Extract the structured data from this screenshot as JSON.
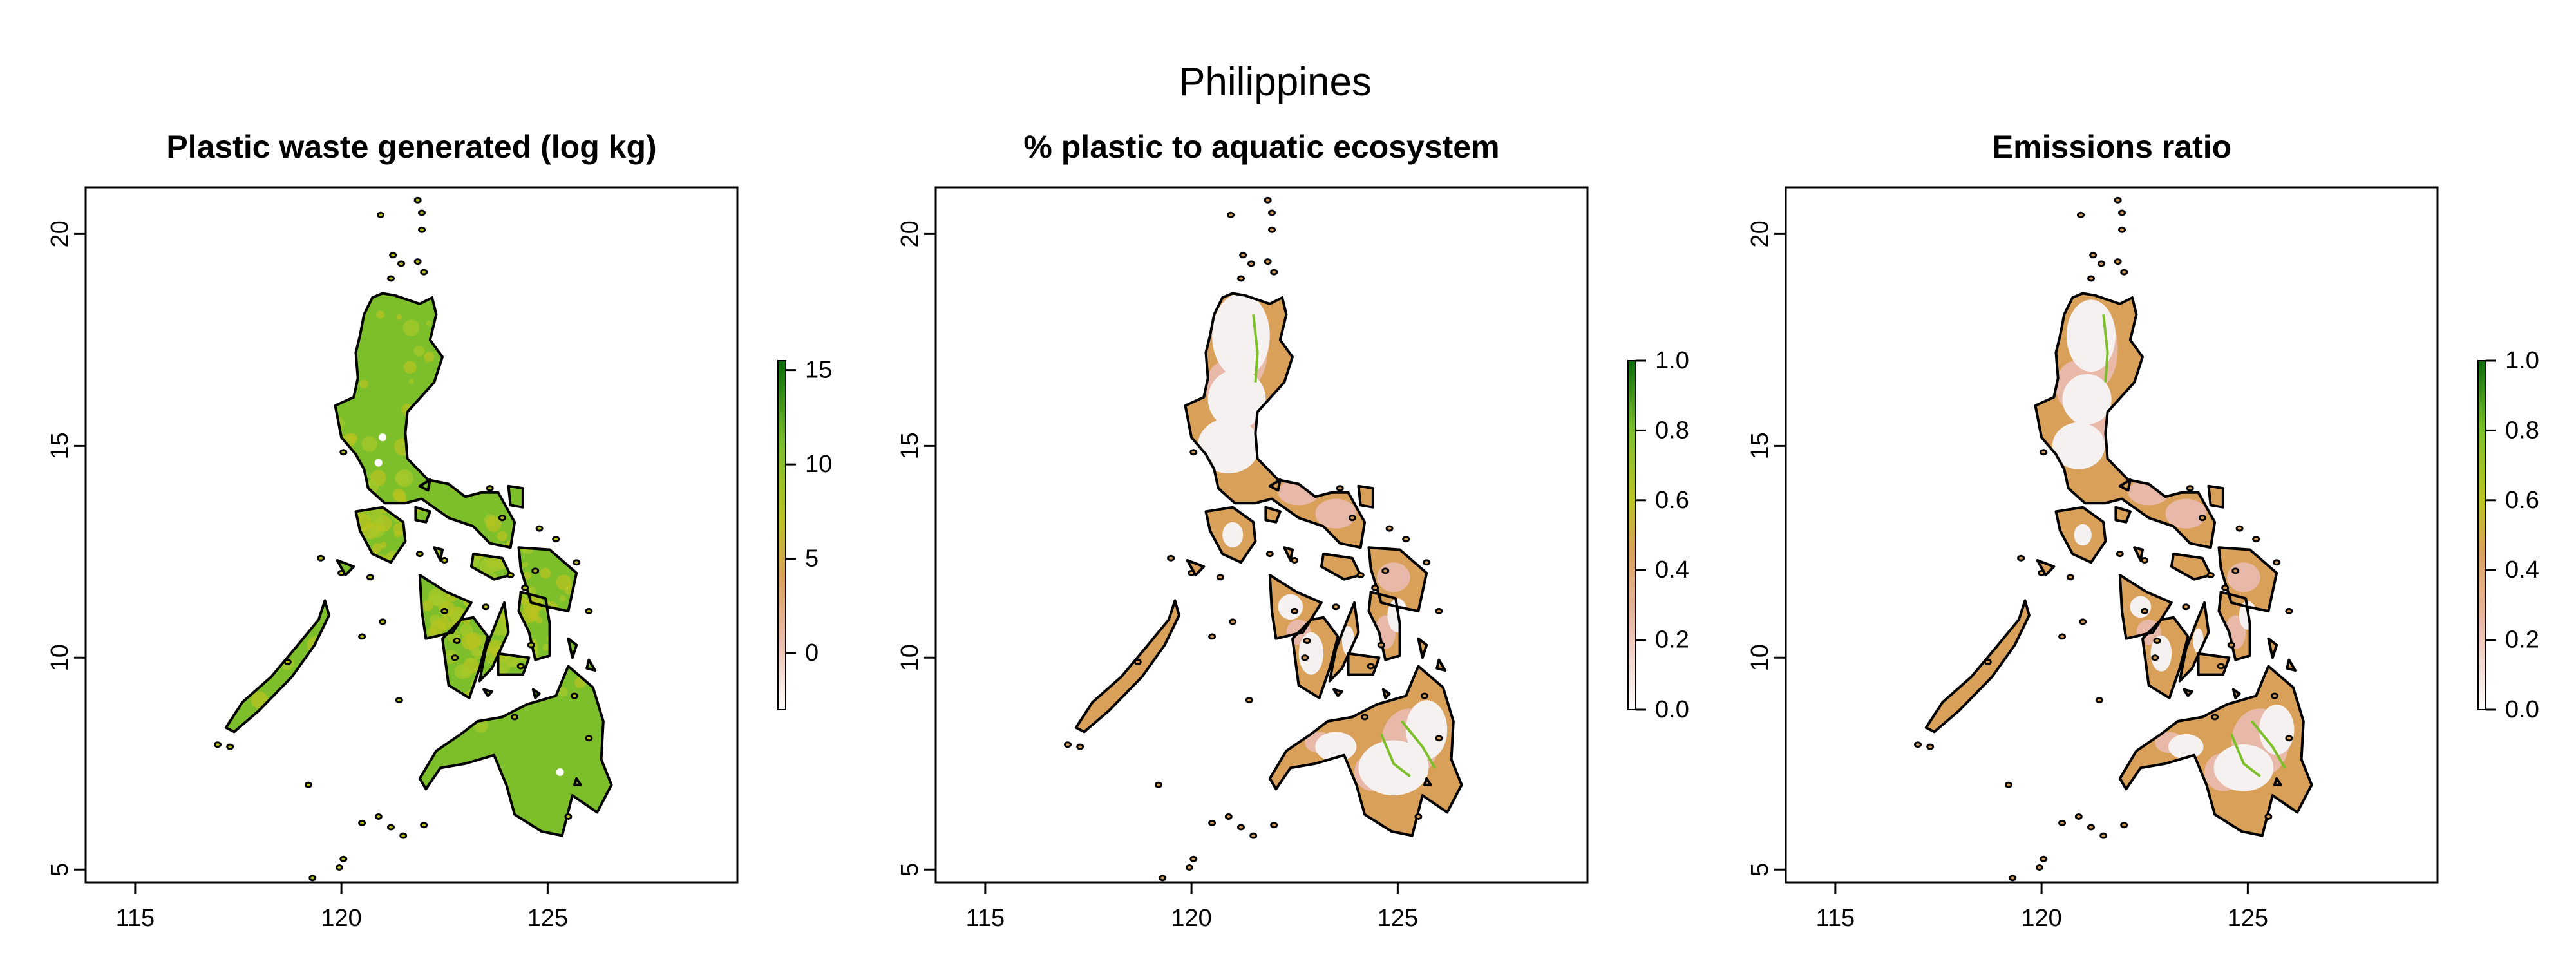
{
  "figure": {
    "title": "Philippines"
  },
  "colors": {
    "land_outline": "#000000",
    "low_color": "#ffffff",
    "low_mid_color": "#e8b9a8",
    "mid_color": "#d9a05a",
    "mid_high_color": "#b9c31f",
    "high_color": "#7dbf2a",
    "max_color": "#0a6e0a"
  },
  "chart_data": [
    {
      "type": "heatmap",
      "title": "Plastic waste generated (log kg)",
      "xlim": [
        113.8,
        129.6
      ],
      "ylim": [
        4.7,
        21.1
      ],
      "x_ticks": [
        115,
        120,
        125
      ],
      "y_ticks": [
        5,
        10,
        15,
        20
      ],
      "legend": {
        "position": "right",
        "range": [
          -3,
          15.5
        ],
        "ticks": [
          0,
          5,
          10,
          15
        ],
        "tick_labels": [
          "0",
          "5",
          "10",
          "15"
        ]
      },
      "fill_scheme": "high"
    },
    {
      "type": "heatmap",
      "title": "% plastic to aquatic ecosystem",
      "xlim": [
        113.8,
        129.6
      ],
      "ylim": [
        4.7,
        21.1
      ],
      "x_ticks": [
        115,
        120,
        125
      ],
      "y_ticks": [
        5,
        10,
        15,
        20
      ],
      "legend": {
        "position": "right",
        "range": [
          0,
          1
        ],
        "ticks": [
          0,
          0.2,
          0.4,
          0.6,
          0.8,
          1
        ],
        "tick_labels": [
          "0.0",
          "0.2",
          "0.4",
          "0.6",
          "0.8",
          "1.0"
        ]
      },
      "fill_scheme": "low"
    },
    {
      "type": "heatmap",
      "title": "Emissions ratio",
      "xlim": [
        113.8,
        129.6
      ],
      "ylim": [
        4.7,
        21.1
      ],
      "x_ticks": [
        115,
        120,
        125
      ],
      "y_ticks": [
        5,
        10,
        15,
        20
      ],
      "legend": {
        "position": "right",
        "range": [
          0,
          1
        ],
        "ticks": [
          0,
          0.2,
          0.4,
          0.6,
          0.8,
          1
        ],
        "tick_labels": [
          "0.0",
          "0.2",
          "0.4",
          "0.6",
          "0.8",
          "1.0"
        ]
      },
      "fill_scheme": "low"
    }
  ]
}
